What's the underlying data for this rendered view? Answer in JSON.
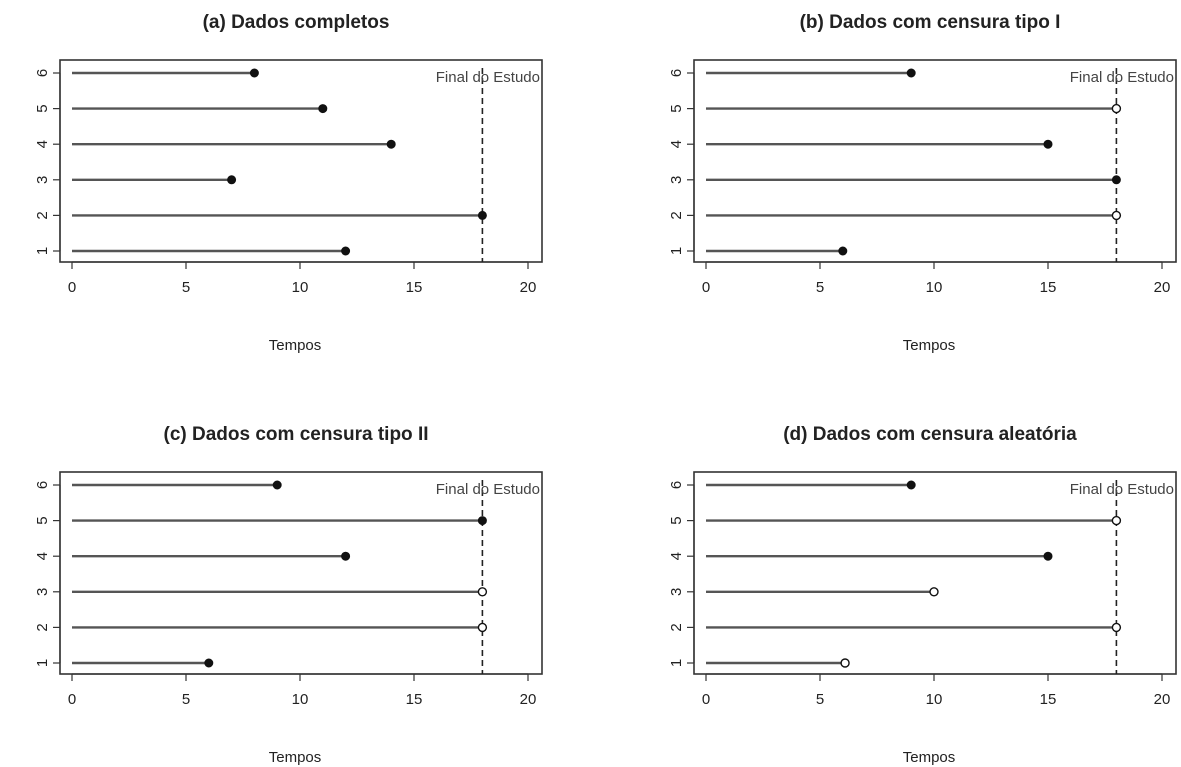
{
  "chart_data": [
    {
      "type": "scatter",
      "title": "(a) Dados completos",
      "xlabel": "Tempos",
      "ylabel": "",
      "xlim": [
        0,
        20
      ],
      "xticks": [
        0,
        5,
        10,
        15,
        20
      ],
      "yticks": [
        1,
        2,
        3,
        4,
        5,
        6
      ],
      "study_end": 18,
      "annotation": "Final do Estudo",
      "subjects": [
        {
          "id": 1,
          "time": 12,
          "event": true
        },
        {
          "id": 2,
          "time": 18,
          "event": true
        },
        {
          "id": 3,
          "time": 7,
          "event": true
        },
        {
          "id": 4,
          "time": 14,
          "event": true
        },
        {
          "id": 5,
          "time": 11,
          "event": true
        },
        {
          "id": 6,
          "time": 8,
          "event": true
        }
      ]
    },
    {
      "type": "scatter",
      "title": "(b) Dados com censura tipo I",
      "xlabel": "Tempos",
      "ylabel": "",
      "xlim": [
        0,
        20
      ],
      "xticks": [
        0,
        5,
        10,
        15,
        20
      ],
      "yticks": [
        1,
        2,
        3,
        4,
        5,
        6
      ],
      "study_end": 18,
      "annotation": "Final do Estudo",
      "subjects": [
        {
          "id": 1,
          "time": 6,
          "event": true
        },
        {
          "id": 2,
          "time": 18,
          "event": false
        },
        {
          "id": 3,
          "time": 18,
          "event": true
        },
        {
          "id": 4,
          "time": 15,
          "event": true
        },
        {
          "id": 5,
          "time": 18,
          "event": false
        },
        {
          "id": 6,
          "time": 9,
          "event": true
        }
      ]
    },
    {
      "type": "scatter",
      "title": "(c) Dados com censura tipo II",
      "xlabel": "Tempos",
      "ylabel": "",
      "xlim": [
        0,
        20
      ],
      "xticks": [
        0,
        5,
        10,
        15,
        20
      ],
      "yticks": [
        1,
        2,
        3,
        4,
        5,
        6
      ],
      "study_end": 18,
      "annotation": "Final do Estudo",
      "subjects": [
        {
          "id": 1,
          "time": 6,
          "event": true
        },
        {
          "id": 2,
          "time": 18,
          "event": false
        },
        {
          "id": 3,
          "time": 18,
          "event": false
        },
        {
          "id": 4,
          "time": 12,
          "event": true
        },
        {
          "id": 5,
          "time": 18,
          "event": true
        },
        {
          "id": 6,
          "time": 9,
          "event": true
        }
      ]
    },
    {
      "type": "scatter",
      "title": "(d) Dados com censura aleatória",
      "xlabel": "Tempos",
      "ylabel": "",
      "xlim": [
        0,
        20
      ],
      "xticks": [
        0,
        5,
        10,
        15,
        20
      ],
      "yticks": [
        1,
        2,
        3,
        4,
        5,
        6
      ],
      "study_end": 18,
      "annotation": "Final do Estudo",
      "subjects": [
        {
          "id": 1,
          "time": 6.1,
          "event": false
        },
        {
          "id": 2,
          "time": 18,
          "event": false
        },
        {
          "id": 3,
          "time": 10,
          "event": false
        },
        {
          "id": 4,
          "time": 15,
          "event": true
        },
        {
          "id": 5,
          "time": 18,
          "event": false
        },
        {
          "id": 6,
          "time": 9,
          "event": true
        }
      ]
    }
  ]
}
